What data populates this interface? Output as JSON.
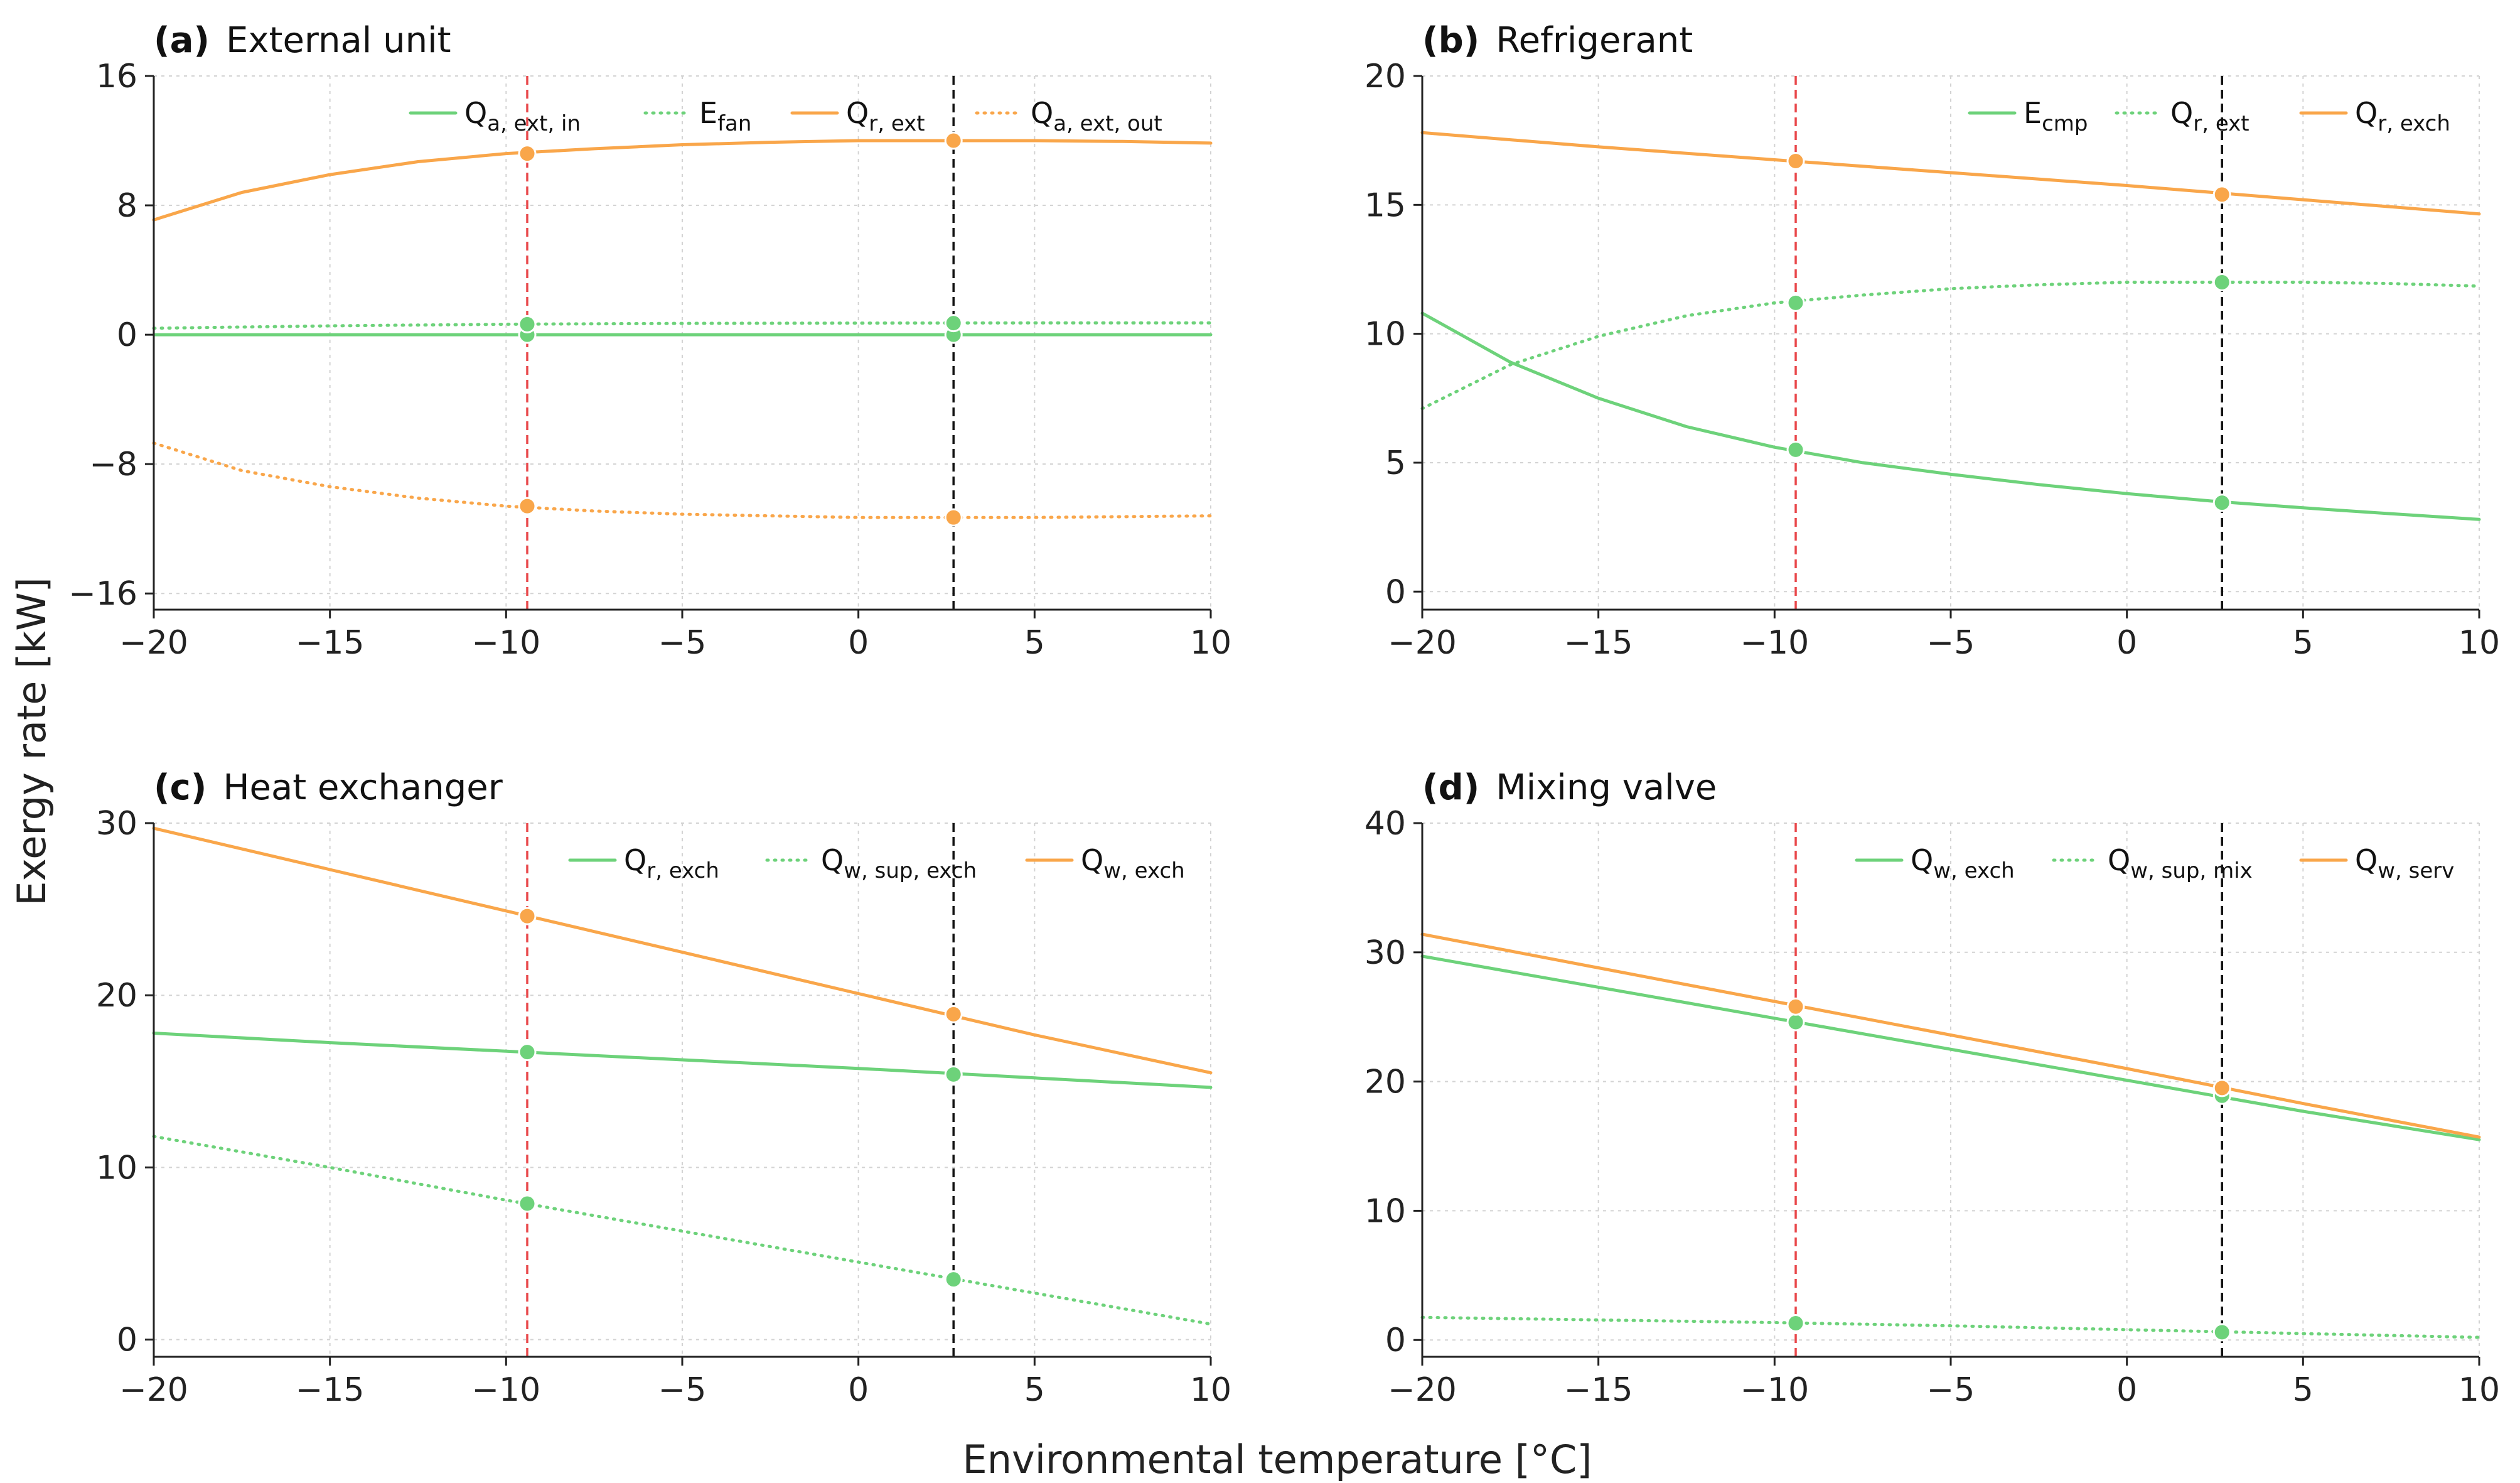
{
  "figure": {
    "ylabel": "Exergy rate [kW]",
    "xlabel": "Environmental temperature [°C]"
  },
  "colors": {
    "green": "#6dd27a",
    "orange": "#f9a64a",
    "vline_red": "#e8474a",
    "vline_black": "#111111"
  },
  "chart_data": [
    {
      "type": "line",
      "letter": "(a)",
      "title": "External unit",
      "xlim": [
        -20,
        10
      ],
      "ylim": [
        -17,
        16
      ],
      "xticks": [
        -20,
        -15,
        -10,
        -5,
        0,
        5,
        10
      ],
      "xtick_labels": [
        "−20",
        "−15",
        "−10",
        "−5",
        "0",
        "5",
        "10"
      ],
      "yticks": [
        -16,
        -8,
        0,
        8,
        16
      ],
      "ytick_labels": [
        "−16",
        "−8",
        "0",
        "8",
        "16"
      ],
      "vlines": [
        {
          "x": -9.4,
          "color": "red"
        },
        {
          "x": 2.7,
          "color": "black"
        }
      ],
      "series": [
        {
          "main": "Q",
          "sub": "a, ext, in",
          "color": "green",
          "style": "solid",
          "x": [
            -20,
            -15,
            -10,
            -5,
            0,
            5,
            10
          ],
          "y": [
            0.0,
            0.0,
            0.0,
            0.0,
            0.0,
            0.0,
            0.0
          ],
          "markers": [
            {
              "x": -9.4,
              "y": 0.0
            },
            {
              "x": 2.7,
              "y": 0.0
            }
          ]
        },
        {
          "main": "E",
          "sub": "fan",
          "color": "green",
          "style": "dotted",
          "x": [
            -20,
            -15,
            -10,
            -5,
            0,
            5,
            10
          ],
          "y": [
            0.4,
            0.55,
            0.65,
            0.7,
            0.72,
            0.73,
            0.73
          ],
          "markers": [
            {
              "x": -9.4,
              "y": 0.65
            },
            {
              "x": 2.7,
              "y": 0.72
            }
          ]
        },
        {
          "main": "Q",
          "sub": "r, ext",
          "color": "orange",
          "style": "solid",
          "x": [
            -20,
            -17.5,
            -15,
            -12.5,
            -10,
            -7.5,
            -5,
            -2.5,
            0,
            2.5,
            5,
            7.5,
            10
          ],
          "y": [
            7.1,
            8.8,
            9.9,
            10.7,
            11.2,
            11.5,
            11.75,
            11.9,
            12.0,
            12.0,
            12.0,
            11.95,
            11.85
          ],
          "markers": [
            {
              "x": -9.4,
              "y": 11.2
            },
            {
              "x": 2.7,
              "y": 12.0
            }
          ]
        },
        {
          "main": "Q",
          "sub": "a, ext, out",
          "color": "orange",
          "style": "dotted",
          "x": [
            -20,
            -17.5,
            -15,
            -12.5,
            -10,
            -7.5,
            -5,
            -2.5,
            0,
            2.5,
            5,
            7.5,
            10
          ],
          "y": [
            -6.7,
            -8.4,
            -9.4,
            -10.1,
            -10.6,
            -10.9,
            -11.1,
            -11.2,
            -11.3,
            -11.3,
            -11.3,
            -11.25,
            -11.2
          ],
          "markers": [
            {
              "x": -9.4,
              "y": -10.6
            },
            {
              "x": 2.7,
              "y": -11.3
            }
          ]
        }
      ]
    },
    {
      "type": "line",
      "letter": "(b)",
      "title": "Refrigerant",
      "xlim": [
        -20,
        10
      ],
      "ylim": [
        -0.7,
        20
      ],
      "xticks": [
        -20,
        -15,
        -10,
        -5,
        0,
        5,
        10
      ],
      "xtick_labels": [
        "−20",
        "−15",
        "−10",
        "−5",
        "0",
        "5",
        "10"
      ],
      "yticks": [
        0,
        5,
        10,
        15,
        20
      ],
      "ytick_labels": [
        "0",
        "5",
        "10",
        "15",
        "20"
      ],
      "vlines": [
        {
          "x": -9.4,
          "color": "red"
        },
        {
          "x": 2.7,
          "color": "black"
        }
      ],
      "series": [
        {
          "main": "E",
          "sub": "cmp",
          "color": "green",
          "style": "solid",
          "x": [
            -20,
            -17.5,
            -15,
            -12.5,
            -10,
            -7.5,
            -5,
            -2.5,
            0,
            2.5,
            5,
            7.5,
            10
          ],
          "y": [
            10.8,
            8.9,
            7.5,
            6.4,
            5.6,
            5.0,
            4.55,
            4.15,
            3.8,
            3.5,
            3.25,
            3.02,
            2.8
          ],
          "markers": [
            {
              "x": -9.4,
              "y": 5.5
            },
            {
              "x": 2.7,
              "y": 3.45
            }
          ]
        },
        {
          "main": "Q",
          "sub": "r, ext",
          "color": "green",
          "style": "dotted",
          "x": [
            -20,
            -17.5,
            -15,
            -12.5,
            -10,
            -7.5,
            -5,
            -2.5,
            0,
            2.5,
            5,
            7.5,
            10
          ],
          "y": [
            7.1,
            8.8,
            9.9,
            10.7,
            11.2,
            11.5,
            11.75,
            11.9,
            12.0,
            12.0,
            12.0,
            11.95,
            11.85
          ],
          "markers": [
            {
              "x": -9.4,
              "y": 11.2
            },
            {
              "x": 2.7,
              "y": 12.0
            }
          ]
        },
        {
          "main": "Q",
          "sub": "r, exch",
          "color": "orange",
          "style": "solid",
          "x": [
            -20,
            -15,
            -10,
            -5,
            0,
            5,
            10
          ],
          "y": [
            17.8,
            17.25,
            16.75,
            16.25,
            15.75,
            15.2,
            14.65
          ],
          "markers": [
            {
              "x": -9.4,
              "y": 16.7
            },
            {
              "x": 2.7,
              "y": 15.4
            }
          ]
        }
      ]
    },
    {
      "type": "line",
      "letter": "(c)",
      "title": "Heat exchanger",
      "xlim": [
        -20,
        10
      ],
      "ylim": [
        -1,
        30
      ],
      "xticks": [
        -20,
        -15,
        -10,
        -5,
        0,
        5,
        10
      ],
      "xtick_labels": [
        "−20",
        "−15",
        "−10",
        "−5",
        "0",
        "5",
        "10"
      ],
      "yticks": [
        0,
        10,
        20,
        30
      ],
      "ytick_labels": [
        "0",
        "10",
        "20",
        "30"
      ],
      "vlines": [
        {
          "x": -9.4,
          "color": "red"
        },
        {
          "x": 2.7,
          "color": "black"
        }
      ],
      "series": [
        {
          "main": "Q",
          "sub": "r, exch",
          "color": "green",
          "style": "solid",
          "x": [
            -20,
            -15,
            -10,
            -5,
            0,
            5,
            10
          ],
          "y": [
            17.8,
            17.25,
            16.75,
            16.25,
            15.75,
            15.2,
            14.65
          ],
          "markers": [
            {
              "x": -9.4,
              "y": 16.7
            },
            {
              "x": 2.7,
              "y": 15.4
            }
          ]
        },
        {
          "main": "Q",
          "sub": "w, sup, exch",
          "color": "green",
          "style": "dotted",
          "x": [
            -20,
            -15,
            -10,
            -5,
            0,
            5,
            10
          ],
          "y": [
            11.8,
            10.0,
            8.1,
            6.3,
            4.5,
            2.7,
            0.9
          ],
          "markers": [
            {
              "x": -9.4,
              "y": 7.9
            },
            {
              "x": 2.7,
              "y": 3.5
            }
          ]
        },
        {
          "main": "Q",
          "sub": "w, exch",
          "color": "orange",
          "style": "solid",
          "x": [
            -20,
            -15,
            -10,
            -5,
            0,
            5,
            10
          ],
          "y": [
            29.7,
            27.3,
            24.9,
            22.5,
            20.1,
            17.7,
            15.5
          ],
          "markers": [
            {
              "x": -9.4,
              "y": 24.6
            },
            {
              "x": 2.7,
              "y": 18.9
            }
          ]
        }
      ]
    },
    {
      "type": "line",
      "letter": "(d)",
      "title": "Mixing valve",
      "xlim": [
        -20,
        10
      ],
      "ylim": [
        -1.3,
        40
      ],
      "xticks": [
        -20,
        -15,
        -10,
        -5,
        0,
        5,
        10
      ],
      "xtick_labels": [
        "−20",
        "−15",
        "−10",
        "−5",
        "0",
        "5",
        "10"
      ],
      "yticks": [
        0,
        10,
        20,
        30,
        40
      ],
      "ytick_labels": [
        "0",
        "10",
        "20",
        "30",
        "40"
      ],
      "vlines": [
        {
          "x": -9.4,
          "color": "red"
        },
        {
          "x": 2.7,
          "color": "black"
        }
      ],
      "series": [
        {
          "main": "Q",
          "sub": "w, exch",
          "color": "green",
          "style": "solid",
          "x": [
            -20,
            -15,
            -10,
            -5,
            0,
            5,
            10
          ],
          "y": [
            29.7,
            27.3,
            24.9,
            22.5,
            20.1,
            17.7,
            15.5
          ],
          "markers": [
            {
              "x": -9.4,
              "y": 24.6
            },
            {
              "x": 2.7,
              "y": 18.9
            }
          ]
        },
        {
          "main": "Q",
          "sub": "w, sup, mix",
          "color": "green",
          "style": "dotted",
          "x": [
            -20,
            -15,
            -10,
            -5,
            0,
            5,
            10
          ],
          "y": [
            1.75,
            1.55,
            1.35,
            1.1,
            0.8,
            0.5,
            0.2
          ],
          "markers": [
            {
              "x": -9.4,
              "y": 1.3
            },
            {
              "x": 2.7,
              "y": 0.6
            }
          ]
        },
        {
          "main": "Q",
          "sub": "w, serv",
          "color": "orange",
          "style": "solid",
          "x": [
            -20,
            -15,
            -10,
            -5,
            0,
            5,
            10
          ],
          "y": [
            31.4,
            28.8,
            26.2,
            23.6,
            21.0,
            18.3,
            15.7
          ],
          "markers": [
            {
              "x": -9.4,
              "y": 25.8
            },
            {
              "x": 2.7,
              "y": 19.5
            }
          ]
        }
      ]
    }
  ]
}
